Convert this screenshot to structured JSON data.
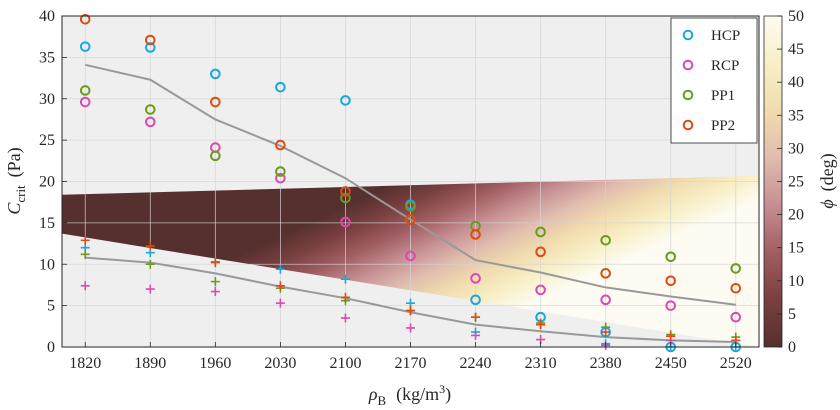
{
  "chart_data": {
    "type": "scatter",
    "xlabel": {
      "symbol": "ρ",
      "sub": "B",
      "units": "(kg/m",
      "sup": "3",
      "close": ")"
    },
    "ylabel": {
      "symbol": "C",
      "sub": "crit",
      "units": "(Pa)"
    },
    "x": [
      1820,
      1890,
      1960,
      2030,
      2100,
      2170,
      2240,
      2310,
      2380,
      2450,
      2520
    ],
    "xlim": [
      1795,
      2545
    ],
    "ylim": [
      0,
      40
    ],
    "yticks": [
      0,
      5,
      10,
      15,
      20,
      25,
      30,
      35,
      40
    ],
    "grid": true,
    "legend_position": "top-right",
    "series": [
      {
        "name": "HCP",
        "marker": "circle",
        "color": "#1aa7e0",
        "values": [
          36.3,
          36.2,
          33.0,
          31.4,
          29.8,
          17.2,
          5.7,
          3.6,
          1.8,
          0.0,
          0.0
        ]
      },
      {
        "name": "RCP",
        "marker": "circle",
        "color": "#d94bb0",
        "values": [
          29.6,
          27.2,
          24.1,
          20.4,
          15.1,
          11.0,
          8.3,
          6.9,
          5.7,
          5.0,
          3.6
        ]
      },
      {
        "name": "PP1",
        "marker": "circle",
        "color": "#6b9a1f",
        "values": [
          31.0,
          28.7,
          23.1,
          21.2,
          18.0,
          17.0,
          14.6,
          13.9,
          12.9,
          10.9,
          9.5
        ]
      },
      {
        "name": "PP2",
        "marker": "circle",
        "color": "#dd4c12",
        "values": [
          39.6,
          37.1,
          29.6,
          24.4,
          18.8,
          15.4,
          13.6,
          11.5,
          8.9,
          8.0,
          7.1
        ]
      },
      {
        "marker": "plus",
        "color": "#1aa7e0",
        "values": [
          12.0,
          11.4,
          10.3,
          9.4,
          8.2,
          5.3,
          1.8,
          2.7,
          0.4,
          0.0,
          0.0
        ]
      },
      {
        "marker": "plus",
        "color": "#d94bb0",
        "values": [
          7.4,
          7.0,
          6.7,
          5.3,
          3.5,
          2.3,
          1.4,
          0.9,
          0.2,
          0.8,
          0.8
        ]
      },
      {
        "marker": "plus",
        "color": "#6b9a1f",
        "values": [
          11.2,
          10.0,
          7.9,
          7.1,
          5.6,
          4.4,
          3.6,
          2.9,
          2.4,
          1.5,
          1.2
        ]
      },
      {
        "marker": "plus",
        "color": "#dd4c12",
        "values": [
          12.9,
          12.2,
          10.2,
          7.4,
          6.0,
          4.4,
          3.6,
          2.7,
          1.8,
          1.3,
          0.8
        ]
      }
    ],
    "lines": [
      {
        "color": "#999999",
        "values": [
          34.1,
          32.3,
          27.5,
          24.3,
          20.4,
          15.4,
          10.5,
          9.0,
          7.2,
          6.1,
          5.1
        ]
      },
      {
        "color": "#999999",
        "values": [
          10.8,
          10.2,
          8.9,
          7.3,
          5.9,
          4.2,
          2.7,
          1.9,
          1.2,
          0.8,
          0.6
        ]
      }
    ],
    "shaded_region": {
      "top_edge": [
        [
          1795,
          18.4
        ],
        [
          2545,
          20.7
        ]
      ],
      "cutoff_edge": [
        [
          1795,
          13.7
        ],
        [
          2545,
          0.0
        ]
      ],
      "colors": [
        "#55302e",
        "#7a3f41",
        "#a05e62",
        "#c68f93",
        "#e0bcae",
        "#f1dcae",
        "#f8efc6",
        "#fdfbf2"
      ]
    },
    "colorbar": {
      "label_symbol": "ϕ",
      "label_units": "(deg)",
      "min": 0,
      "max": 50,
      "ticks": [
        0,
        5,
        10,
        15,
        20,
        25,
        30,
        35,
        40,
        45,
        50
      ],
      "colors": [
        "#55302e",
        "#7a3f41",
        "#a05e62",
        "#c68f93",
        "#e0bcae",
        "#f1dcae",
        "#f8efc6",
        "#fdfbf2"
      ]
    }
  }
}
